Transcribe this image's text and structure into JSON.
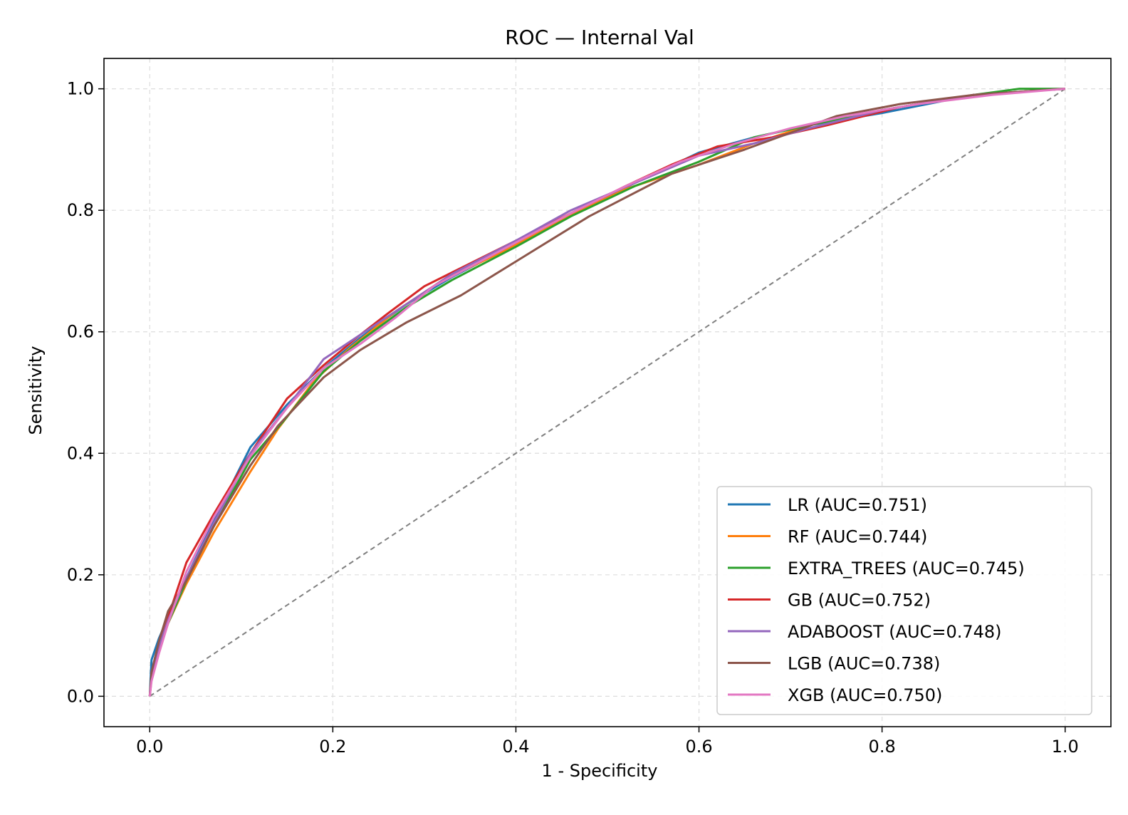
{
  "chart_data": {
    "type": "line",
    "title": "ROC — Internal Val",
    "xlabel": "1 - Specificity",
    "ylabel": "Sensitivity",
    "xlim": [
      -0.05,
      1.05
    ],
    "ylim": [
      -0.05,
      1.05
    ],
    "xticks": [
      0.0,
      0.2,
      0.4,
      0.6,
      0.8,
      1.0
    ],
    "yticks": [
      0.0,
      0.2,
      0.4,
      0.6,
      0.8,
      1.0
    ],
    "xtick_labels": [
      "0.0",
      "0.2",
      "0.4",
      "0.6",
      "0.8",
      "1.0"
    ],
    "ytick_labels": [
      "0.0",
      "0.2",
      "0.4",
      "0.6",
      "0.8",
      "1.0"
    ],
    "grid": true,
    "legend_position": "lower-right",
    "reference_line": {
      "x": [
        0,
        1
      ],
      "y": [
        0,
        1
      ],
      "color": "#808080",
      "style": "dashed"
    },
    "series": [
      {
        "name": "LR (AUC=0.751)",
        "color": "#1f77b4",
        "x": [
          0,
          0.002,
          0.01,
          0.02,
          0.04,
          0.07,
          0.11,
          0.15,
          0.19,
          0.23,
          0.28,
          0.33,
          0.4,
          0.46,
          0.53,
          0.6,
          0.66,
          0.72,
          0.8,
          0.9,
          1.0
        ],
        "y": [
          0,
          0.06,
          0.095,
          0.13,
          0.195,
          0.29,
          0.41,
          0.48,
          0.54,
          0.59,
          0.645,
          0.69,
          0.745,
          0.795,
          0.845,
          0.895,
          0.92,
          0.94,
          0.96,
          0.99,
          1.0
        ]
      },
      {
        "name": "RF (AUC=0.744)",
        "color": "#ff7f0e",
        "x": [
          0,
          0.002,
          0.01,
          0.02,
          0.04,
          0.07,
          0.11,
          0.14,
          0.18,
          0.22,
          0.27,
          0.32,
          0.39,
          0.45,
          0.52,
          0.6,
          0.66,
          0.72,
          0.8,
          0.9,
          1.0
        ],
        "y": [
          0,
          0.03,
          0.075,
          0.12,
          0.185,
          0.27,
          0.37,
          0.44,
          0.52,
          0.575,
          0.635,
          0.685,
          0.735,
          0.785,
          0.835,
          0.875,
          0.91,
          0.94,
          0.965,
          0.99,
          1.0
        ]
      },
      {
        "name": "EXTRA_TREES (AUC=0.745)",
        "color": "#2ca02c",
        "x": [
          0,
          0.002,
          0.01,
          0.02,
          0.04,
          0.07,
          0.11,
          0.15,
          0.19,
          0.23,
          0.28,
          0.33,
          0.4,
          0.46,
          0.53,
          0.6,
          0.66,
          0.72,
          0.8,
          0.9,
          0.95,
          1.0
        ],
        "y": [
          0,
          0.035,
          0.08,
          0.12,
          0.19,
          0.28,
          0.39,
          0.46,
          0.535,
          0.585,
          0.64,
          0.685,
          0.74,
          0.79,
          0.84,
          0.88,
          0.92,
          0.94,
          0.965,
          0.99,
          1.0,
          1.0
        ]
      },
      {
        "name": "GB (AUC=0.752)",
        "color": "#d62728",
        "x": [
          0,
          0.002,
          0.01,
          0.02,
          0.04,
          0.07,
          0.11,
          0.15,
          0.19,
          0.23,
          0.26,
          0.3,
          0.34,
          0.4,
          0.46,
          0.52,
          0.57,
          0.62,
          0.68,
          0.74,
          0.82,
          0.9,
          1.0
        ],
        "y": [
          0,
          0.03,
          0.08,
          0.13,
          0.22,
          0.3,
          0.4,
          0.49,
          0.545,
          0.595,
          0.63,
          0.675,
          0.705,
          0.75,
          0.795,
          0.84,
          0.875,
          0.905,
          0.92,
          0.94,
          0.97,
          0.99,
          1.0
        ]
      },
      {
        "name": "ADABOOST (AUC=0.748)",
        "color": "#9467bd",
        "x": [
          0,
          0.002,
          0.01,
          0.02,
          0.04,
          0.07,
          0.11,
          0.15,
          0.19,
          0.23,
          0.28,
          0.33,
          0.4,
          0.46,
          0.53,
          0.6,
          0.66,
          0.72,
          0.8,
          0.9,
          1.0
        ],
        "y": [
          0,
          0.035,
          0.08,
          0.125,
          0.195,
          0.285,
          0.4,
          0.475,
          0.555,
          0.595,
          0.645,
          0.695,
          0.75,
          0.8,
          0.845,
          0.89,
          0.91,
          0.935,
          0.965,
          0.99,
          1.0
        ]
      },
      {
        "name": "LGB (AUC=0.738)",
        "color": "#8c564b",
        "x": [
          0,
          0.002,
          0.01,
          0.02,
          0.04,
          0.07,
          0.11,
          0.14,
          0.19,
          0.23,
          0.28,
          0.34,
          0.41,
          0.48,
          0.57,
          0.65,
          0.75,
          0.82,
          0.9,
          1.0
        ],
        "y": [
          0,
          0.04,
          0.09,
          0.14,
          0.19,
          0.28,
          0.38,
          0.445,
          0.525,
          0.57,
          0.615,
          0.66,
          0.725,
          0.79,
          0.86,
          0.9,
          0.955,
          0.975,
          0.99,
          1.0
        ]
      },
      {
        "name": "XGB (AUC=0.750)",
        "color": "#e377c2",
        "x": [
          0,
          0.002,
          0.01,
          0.02,
          0.04,
          0.07,
          0.11,
          0.15,
          0.19,
          0.23,
          0.27,
          0.31,
          0.36,
          0.41,
          0.46,
          0.52,
          0.58,
          0.64,
          0.7,
          0.76,
          0.84,
          0.92,
          1.0
        ],
        "y": [
          0,
          0.025,
          0.07,
          0.12,
          0.205,
          0.295,
          0.395,
          0.475,
          0.54,
          0.58,
          0.625,
          0.675,
          0.715,
          0.755,
          0.795,
          0.84,
          0.88,
          0.91,
          0.935,
          0.955,
          0.975,
          0.99,
          1.0
        ]
      }
    ]
  }
}
